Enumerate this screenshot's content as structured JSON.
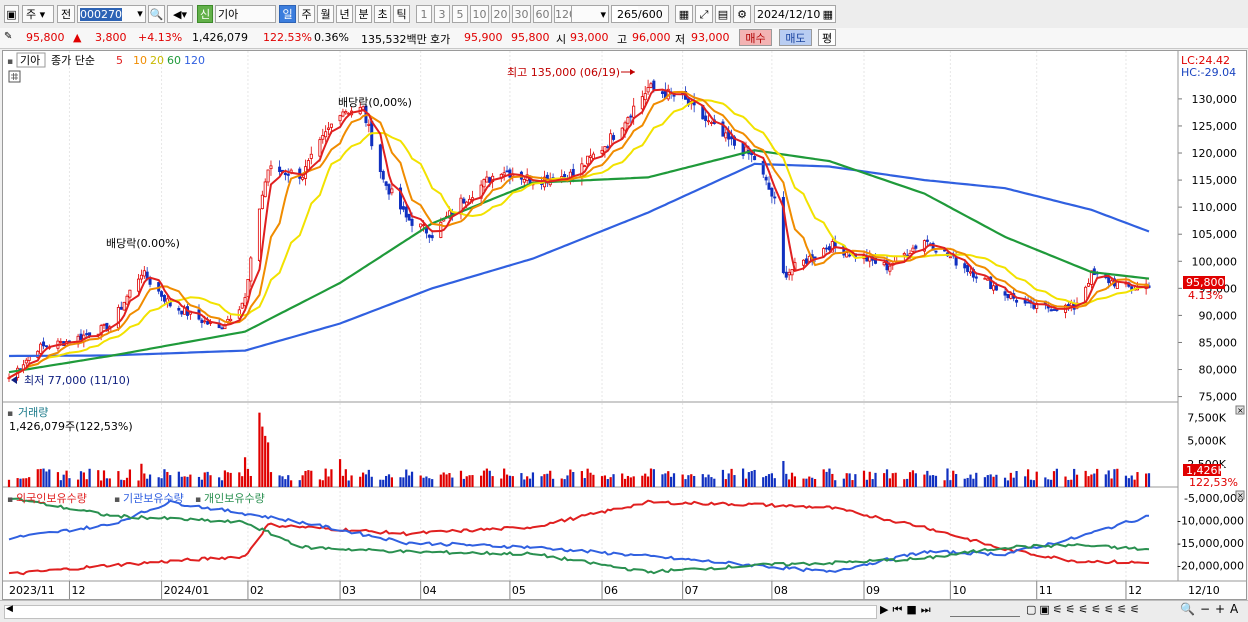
{
  "toolbar": {
    "market": "주",
    "scope": "전",
    "stock_code": "000270",
    "stock_badge": "신",
    "stock_name": "기아",
    "periods": [
      "일",
      "주",
      "월",
      "년",
      "분",
      "초",
      "틱"
    ],
    "active_period": "일",
    "intervals": [
      "1",
      "3",
      "5",
      "10",
      "20",
      "30",
      "60",
      "120"
    ],
    "count_value": "265",
    "count_max": "/600",
    "date": "2024/12/10"
  },
  "quote": {
    "price": "95,800",
    "change": "3,800",
    "change_rate": "+4.13%",
    "volume": "1,426,079",
    "volume_ratio": "122.53%",
    "turnover": "0.36%",
    "amount": "135,532백만",
    "ask_label": "호가",
    "ask": "95,900",
    "bid": "95,800",
    "open_label": "시",
    "open": "93,000",
    "high_label": "고",
    "high": "96,000",
    "low_label": "저",
    "low": "93,000",
    "buy_button": "매수",
    "sell_button": "매도",
    "eval_button": "평"
  },
  "chart_data": [
    {
      "type": "candlestick",
      "title": "기아",
      "legend": {
        "label": "종가 단순",
        "periods": [
          "5",
          "10",
          "20",
          "60",
          "120"
        ],
        "colors": [
          "#e02020",
          "#f08c00",
          "#f2e200",
          "#1f9a3a",
          "#3060e0"
        ]
      },
      "lc": "LC:24.42",
      "hc": "HC:-29.04",
      "ylim": [
        74000,
        137000
      ],
      "y_ticks": [
        "130,000",
        "125,000",
        "120,000",
        "115,000",
        "110,000",
        "105,000",
        "100,000",
        "95,000",
        "90,000",
        "85,000",
        "80,000",
        "75,000"
      ],
      "x_ticks": [
        "2023/11",
        "12",
        "2024/01",
        "02",
        "03",
        "04",
        "05",
        "06",
        "07",
        "08",
        "09",
        "10",
        "11",
        "12",
        "12/10"
      ],
      "current_price_label": "95,800",
      "current_change_label": "4.13%",
      "annotations": [
        "최고 135,000 (06/19)",
        "최저 77,000 (11/10)",
        "배당락(0.00%)",
        "배당락(0,00%)"
      ],
      "close_keypoints": [
        {
          "x": "2023/11/10",
          "y": 78500
        },
        {
          "x": "2023/11/20",
          "y": 84000
        },
        {
          "x": "2023/12/01",
          "y": 85300
        },
        {
          "x": "2023/12/15",
          "y": 88000
        },
        {
          "x": "2023/12/26",
          "y": 98000
        },
        {
          "x": "2024/01/05",
          "y": 92000
        },
        {
          "x": "2024/01/22",
          "y": 87500
        },
        {
          "x": "2024/01/31",
          "y": 93000
        },
        {
          "x": "2024/02/05",
          "y": 110000
        },
        {
          "x": "2024/02/08",
          "y": 117000
        },
        {
          "x": "2024/02/20",
          "y": 116000
        },
        {
          "x": "2024/03/04",
          "y": 128000
        },
        {
          "x": "2024/03/12",
          "y": 128000
        },
        {
          "x": "2024/03/19",
          "y": 115000
        },
        {
          "x": "2024/03/27",
          "y": 108000
        },
        {
          "x": "2024/04/05",
          "y": 105000
        },
        {
          "x": "2024/04/15",
          "y": 111000
        },
        {
          "x": "2024/04/29",
          "y": 117000
        },
        {
          "x": "2024/05/10",
          "y": 115000
        },
        {
          "x": "2024/05/24",
          "y": 116000
        },
        {
          "x": "2024/06/05",
          "y": 122000
        },
        {
          "x": "2024/06/19",
          "y": 132000
        },
        {
          "x": "2024/07/01",
          "y": 130000
        },
        {
          "x": "2024/07/15",
          "y": 123000
        },
        {
          "x": "2024/07/26",
          "y": 119000
        },
        {
          "x": "2024/08/02",
          "y": 111000
        },
        {
          "x": "2024/08/05",
          "y": 97500
        },
        {
          "x": "2024/08/21",
          "y": 103000
        },
        {
          "x": "2024/09/10",
          "y": 99000
        },
        {
          "x": "2024/09/23",
          "y": 104000
        },
        {
          "x": "2024/10/04",
          "y": 100000
        },
        {
          "x": "2024/10/21",
          "y": 94000
        },
        {
          "x": "2024/10/30",
          "y": 91500
        },
        {
          "x": "2024/11/14",
          "y": 91500
        },
        {
          "x": "2024/11/20",
          "y": 97500
        },
        {
          "x": "2024/12/04",
          "y": 95000
        },
        {
          "x": "2024/12/10",
          "y": 95800
        }
      ],
      "ma60_keypoints": [
        {
          "x": "2023/11/10",
          "y": 79500
        },
        {
          "x": "2023/12/15",
          "y": 82500
        },
        {
          "x": "2024/01/31",
          "y": 87000
        },
        {
          "x": "2024/03/04",
          "y": 96000
        },
        {
          "x": "2024/04/05",
          "y": 107000
        },
        {
          "x": "2024/05/10",
          "y": 114500
        },
        {
          "x": "2024/06/19",
          "y": 115500
        },
        {
          "x": "2024/07/26",
          "y": 120500
        },
        {
          "x": "2024/08/21",
          "y": 118500
        },
        {
          "x": "2024/09/23",
          "y": 112500
        },
        {
          "x": "2024/10/21",
          "y": 104500
        },
        {
          "x": "2024/11/20",
          "y": 98000
        },
        {
          "x": "2024/12/10",
          "y": 96800
        }
      ],
      "ma120_keypoints": [
        {
          "x": "2023/11/10",
          "y": 82500
        },
        {
          "x": "2023/12/15",
          "y": 82600
        },
        {
          "x": "2024/01/31",
          "y": 83500
        },
        {
          "x": "2024/03/04",
          "y": 88500
        },
        {
          "x": "2024/04/05",
          "y": 95000
        },
        {
          "x": "2024/05/10",
          "y": 100500
        },
        {
          "x": "2024/06/19",
          "y": 109000
        },
        {
          "x": "2024/07/26",
          "y": 118000
        },
        {
          "x": "2024/08/21",
          "y": 117500
        },
        {
          "x": "2024/09/23",
          "y": 115000
        },
        {
          "x": "2024/10/21",
          "y": 113500
        },
        {
          "x": "2024/11/20",
          "y": 109500
        },
        {
          "x": "2024/12/10",
          "y": 105500
        }
      ]
    },
    {
      "type": "bar",
      "title": "거래량",
      "info": "1,426,079주(122,53%)",
      "y_ticks": [
        "7,500K",
        "5,000K",
        "2,500K"
      ],
      "current_label": "1,426K",
      "current_ratio_label": "122,53%"
    },
    {
      "type": "line",
      "series_names": [
        "외국인보유수량",
        "기관보유수량",
        "개인보유수량"
      ],
      "colors": [
        "#e02020",
        "#3060e0",
        "#2a9050"
      ],
      "y_ticks": [
        "-5,000,000",
        "-10,000,000",
        "-15,000,000",
        "-20,000,000"
      ],
      "ylim": [
        -23500000,
        -3500000
      ],
      "series": [
        {
          "name": "외국인보유수량",
          "keypoints": [
            {
              "x": "2023/11/10",
              "y": -22000000
            },
            {
              "x": "2023/12/15",
              "y": -20000000
            },
            {
              "x": "2024/01/31",
              "y": -18000000
            },
            {
              "x": "2024/02/08",
              "y": -11000000
            },
            {
              "x": "2024/03/27",
              "y": -13000000
            },
            {
              "x": "2024/05/10",
              "y": -11500000
            },
            {
              "x": "2024/06/19",
              "y": -6000000
            },
            {
              "x": "2024/07/26",
              "y": -6500000
            },
            {
              "x": "2024/08/21",
              "y": -7200000
            },
            {
              "x": "2024/09/23",
              "y": -11500000
            },
            {
              "x": "2024/10/21",
              "y": -16500000
            },
            {
              "x": "2024/11/14",
              "y": -19000000
            },
            {
              "x": "2024/12/10",
              "y": -19500000
            }
          ]
        },
        {
          "name": "기관보유수량",
          "keypoints": [
            {
              "x": "2023/11/10",
              "y": -14000000
            },
            {
              "x": "2023/12/15",
              "y": -11000000
            },
            {
              "x": "2024/01/05",
              "y": -6000000
            },
            {
              "x": "2024/01/31",
              "y": -8500000
            },
            {
              "x": "2024/02/20",
              "y": -10500000
            },
            {
              "x": "2024/03/27",
              "y": -15000000
            },
            {
              "x": "2024/05/10",
              "y": -16000000
            },
            {
              "x": "2024/06/19",
              "y": -18000000
            },
            {
              "x": "2024/07/26",
              "y": -20000000
            },
            {
              "x": "2024/08/21",
              "y": -21500000
            },
            {
              "x": "2024/09/23",
              "y": -17000000
            },
            {
              "x": "2024/10/21",
              "y": -17500000
            },
            {
              "x": "2024/11/14",
              "y": -14000000
            },
            {
              "x": "2024/12/10",
              "y": -9000000
            }
          ]
        },
        {
          "name": "개인보유수량",
          "keypoints": [
            {
              "x": "2023/11/10",
              "y": -5000000
            },
            {
              "x": "2023/12/15",
              "y": -9000000
            },
            {
              "x": "2024/01/31",
              "y": -10500000
            },
            {
              "x": "2024/02/20",
              "y": -16000000
            },
            {
              "x": "2024/03/27",
              "y": -17000000
            },
            {
              "x": "2024/05/10",
              "y": -17500000
            },
            {
              "x": "2024/06/19",
              "y": -21500000
            },
            {
              "x": "2024/07/26",
              "y": -20000000
            },
            {
              "x": "2024/08/21",
              "y": -19500000
            },
            {
              "x": "2024/09/23",
              "y": -18500000
            },
            {
              "x": "2024/10/21",
              "y": -16000000
            },
            {
              "x": "2024/11/14",
              "y": -15500000
            },
            {
              "x": "2024/12/10",
              "y": -16500000
            }
          ]
        }
      ]
    }
  ]
}
